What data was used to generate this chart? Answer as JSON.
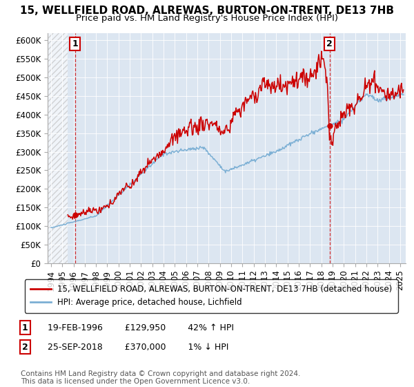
{
  "title": "15, WELLFIELD ROAD, ALREWAS, BURTON-ON-TRENT, DE13 7HB",
  "subtitle": "Price paid vs. HM Land Registry's House Price Index (HPI)",
  "ylabel_ticks": [
    "£0",
    "£50K",
    "£100K",
    "£150K",
    "£200K",
    "£250K",
    "£300K",
    "£350K",
    "£400K",
    "£450K",
    "£500K",
    "£550K",
    "£600K"
  ],
  "ylim": [
    0,
    620000
  ],
  "xlim_start": 1993.7,
  "xlim_end": 2025.5,
  "background_color": "#ffffff",
  "plot_bg_color": "#dce6f1",
  "hpi_color": "#7bafd4",
  "price_color": "#cc0000",
  "marker1_date": 1996.13,
  "marker1_price": 129950,
  "marker2_date": 2018.73,
  "marker2_price": 370000,
  "legend_label1": "15, WELLFIELD ROAD, ALREWAS, BURTON-ON-TRENT, DE13 7HB (detached house)",
  "legend_label2": "HPI: Average price, detached house, Lichfield",
  "annotation1_text": "19-FEB-1996        £129,950        42% ↑ HPI",
  "annotation2_text": "25-SEP-2018        £370,000        1% ↓ HPI",
  "footer": "Contains HM Land Registry data © Crown copyright and database right 2024.\nThis data is licensed under the Open Government Licence v3.0.",
  "title_fontsize": 11,
  "subtitle_fontsize": 9.5,
  "tick_fontsize": 8.5,
  "legend_fontsize": 8.5,
  "annotation_fontsize": 9
}
